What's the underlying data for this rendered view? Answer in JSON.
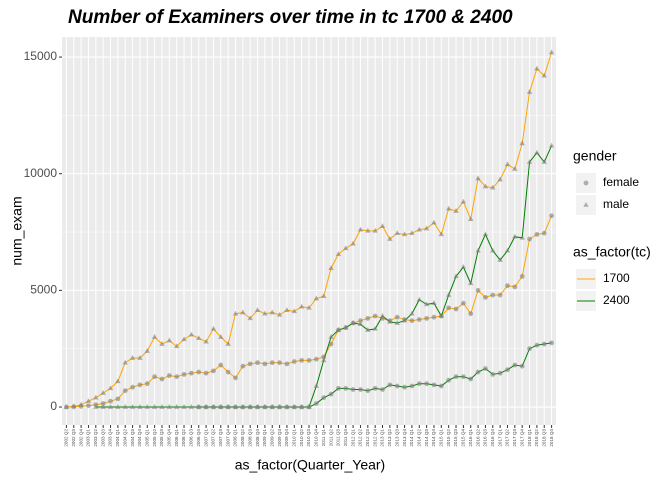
{
  "chart_data": {
    "type": "line",
    "title": "Number of Examiners over time in tc 1700 & 2400",
    "x_label": "as_factor(Quarter_Year)",
    "y_label": "num_exam",
    "categories": [
      "2002 Q2",
      "2002 Q3",
      "2002 Q4",
      "2003 Q1",
      "2003 Q2",
      "2003 Q3",
      "2003 Q4",
      "2004 Q1",
      "2004 Q2",
      "2004 Q3",
      "2004 Q4",
      "2005 Q1",
      "2005 Q2",
      "2005 Q3",
      "2005 Q4",
      "2006 Q1",
      "2006 Q2",
      "2006 Q3",
      "2006 Q4",
      "2007 Q1",
      "2007 Q2",
      "2007 Q3",
      "2007 Q4",
      "2008 Q1",
      "2008 Q2",
      "2008 Q3",
      "2008 Q4",
      "2009 Q1",
      "2009 Q2",
      "2009 Q3",
      "2009 Q4",
      "2010 Q1",
      "2010 Q2",
      "2010 Q3",
      "2010 Q4",
      "2011 Q1",
      "2011 Q2",
      "2011 Q3",
      "2011 Q4",
      "2012 Q1",
      "2012 Q2",
      "2012 Q3",
      "2012 Q4",
      "2013 Q1",
      "2013 Q2",
      "2013 Q3",
      "2013 Q4",
      "2014 Q1",
      "2014 Q2",
      "2014 Q3",
      "2014 Q4",
      "2015 Q1",
      "2015 Q2",
      "2015 Q3",
      "2015 Q4",
      "2016 Q1",
      "2016 Q2",
      "2016 Q3",
      "2016 Q4",
      "2017 Q1",
      "2017 Q2",
      "2017 Q3",
      "2017 Q4",
      "2018 Q1",
      "2018 Q2",
      "2018 Q3",
      "2018 Q4"
    ],
    "legends": [
      {
        "title": "gender",
        "items": [
          {
            "label": "female",
            "shape": "circle"
          },
          {
            "label": "male",
            "shape": "triangle"
          }
        ]
      },
      {
        "title": "as_factor(tc)",
        "items": [
          {
            "label": "1700",
            "color": "#FFA500"
          },
          {
            "label": "2400",
            "color": "#008000"
          }
        ]
      }
    ],
    "point_color": "#808080",
    "series": [
      {
        "tc": "1700",
        "gender": "male",
        "values": [
          0,
          30,
          100,
          250,
          400,
          600,
          800,
          1100,
          1900,
          2100,
          2100,
          2400,
          3000,
          2700,
          2850,
          2600,
          2900,
          3100,
          2950,
          2800,
          3350,
          3000,
          2700,
          4000,
          4050,
          3800,
          4150,
          4000,
          4050,
          3950,
          4150,
          4100,
          4300,
          4250,
          4650,
          4750,
          5950,
          6550,
          6800,
          7000,
          7600,
          7550,
          7550,
          7750,
          7200,
          7450,
          7400,
          7450,
          7600,
          7650,
          7900,
          7400,
          8500,
          8400,
          8800,
          8050,
          9800,
          9450,
          9400,
          9750,
          10400,
          10200,
          11300,
          13500,
          14500,
          14200,
          15200
        ]
      },
      {
        "tc": "1700",
        "gender": "female",
        "values": [
          0,
          10,
          30,
          60,
          100,
          150,
          250,
          350,
          700,
          850,
          950,
          1000,
          1300,
          1200,
          1350,
          1300,
          1400,
          1450,
          1500,
          1450,
          1550,
          1800,
          1500,
          1250,
          1750,
          1850,
          1900,
          1850,
          1900,
          1900,
          1850,
          1950,
          2000,
          2000,
          2050,
          2150,
          2700,
          3300,
          3400,
          3600,
          3700,
          3800,
          3900,
          3800,
          3700,
          3850,
          3750,
          3700,
          3750,
          3800,
          3850,
          3900,
          4250,
          4200,
          4450,
          4000,
          5000,
          4700,
          4800,
          4800,
          5200,
          5150,
          5600,
          7200,
          7400,
          7450,
          8200
        ]
      },
      {
        "tc": "2400",
        "gender": "male",
        "values": [
          null,
          null,
          null,
          null,
          0,
          0,
          0,
          0,
          0,
          0,
          0,
          0,
          0,
          0,
          0,
          0,
          0,
          0,
          0,
          0,
          0,
          0,
          0,
          0,
          0,
          0,
          0,
          0,
          0,
          0,
          0,
          0,
          0,
          0,
          900,
          2000,
          3000,
          3300,
          3400,
          3600,
          3550,
          3300,
          3350,
          3900,
          3650,
          3600,
          3700,
          4000,
          4600,
          4400,
          4450,
          3900,
          4800,
          5600,
          6000,
          5300,
          6700,
          7400,
          6700,
          6300,
          6700,
          7300,
          7250,
          10500,
          10900,
          10500,
          11200
        ]
      },
      {
        "tc": "2400",
        "gender": "female",
        "values": [
          null,
          null,
          null,
          null,
          null,
          null,
          null,
          null,
          null,
          null,
          null,
          null,
          null,
          null,
          null,
          null,
          null,
          null,
          0,
          0,
          0,
          0,
          0,
          0,
          0,
          0,
          0,
          0,
          0,
          0,
          0,
          0,
          0,
          0,
          150,
          400,
          550,
          800,
          800,
          750,
          750,
          700,
          800,
          750,
          950,
          900,
          850,
          900,
          1000,
          1000,
          950,
          900,
          1150,
          1300,
          1300,
          1200,
          1500,
          1650,
          1400,
          1450,
          1600,
          1800,
          1750,
          2500,
          2650,
          2700,
          2750
        ]
      }
    ],
    "ylim": [
      -770,
      15860
    ],
    "yticks": [
      0,
      5000,
      10000,
      15000
    ],
    "grid": true,
    "panel_background": "#EBEBEB"
  }
}
